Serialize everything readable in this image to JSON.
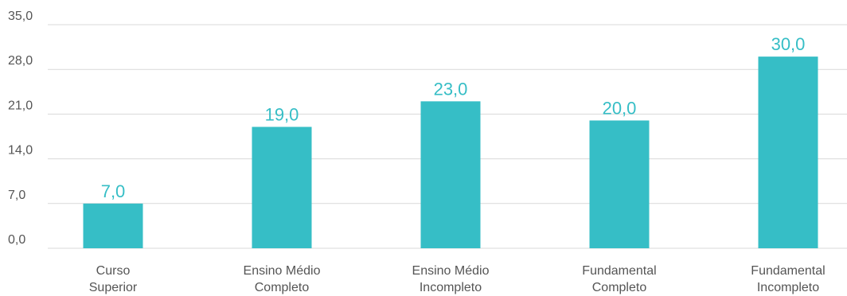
{
  "chart_data": {
    "type": "bar",
    "title": "",
    "xlabel": "",
    "ylabel": "",
    "categories": [
      [
        "Curso",
        "Superior"
      ],
      [
        "Ensino Médio",
        "Completo"
      ],
      [
        "Ensino Médio",
        "Incompleto"
      ],
      [
        "Fundamental",
        "Completo"
      ],
      [
        "Fundamental",
        "Incompleto"
      ]
    ],
    "values": [
      7.0,
      19.0,
      23.0,
      20.0,
      30.0
    ],
    "value_labels": [
      "7,0",
      "19,0",
      "23,0",
      "20,0",
      "30,0"
    ],
    "ylim": [
      0,
      35
    ],
    "y_ticks": [
      0,
      7,
      14,
      21,
      28,
      35
    ],
    "y_tick_labels": [
      "0,0",
      "7,0",
      "14,0",
      "21,0",
      "28,0",
      "35,0"
    ],
    "grid": true,
    "legend": "none",
    "colors": {
      "bar": "#36bec6",
      "label": "#36bec6",
      "grid": "#d9d9d9",
      "text": "#555555"
    }
  }
}
